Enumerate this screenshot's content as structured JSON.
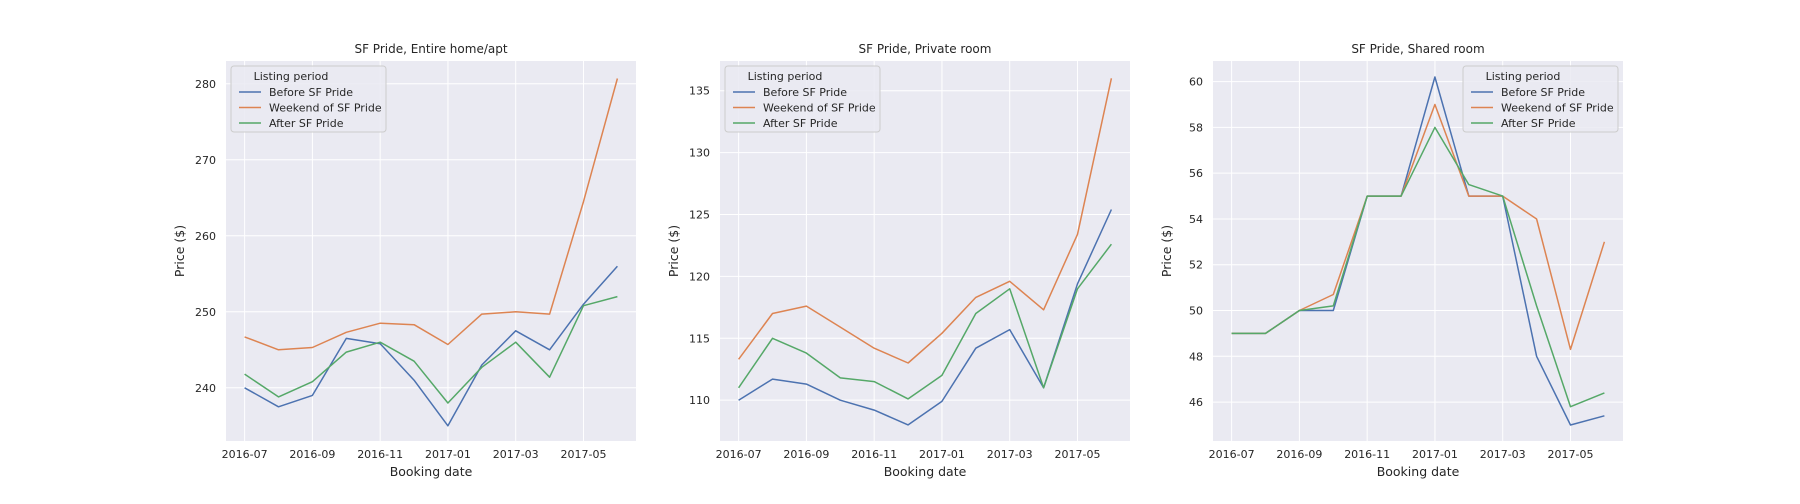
{
  "chart_data": [
    {
      "type": "line",
      "title": "SF Pride, Entire home/apt",
      "xlabel": "Booking date",
      "ylabel": "Price ($)",
      "x": [
        "2016-07",
        "2016-08",
        "2016-09",
        "2016-10",
        "2016-11",
        "2016-12",
        "2017-01",
        "2017-02",
        "2017-03",
        "2017-04",
        "2017-05",
        "2017-06"
      ],
      "xticks": [
        "2016-07",
        "2016-09",
        "2016-11",
        "2017-01",
        "2017-03",
        "2017-05"
      ],
      "ylim": [
        233,
        283
      ],
      "yticks": [
        240,
        250,
        260,
        270,
        280
      ],
      "grid": true,
      "legend": {
        "title": "Listing period",
        "placement": "top-left"
      },
      "series": [
        {
          "name": "Before SF Pride",
          "color": "#4c72b0",
          "values": [
            240,
            237.5,
            239,
            246.5,
            245.8,
            241,
            235,
            243,
            247.5,
            245,
            251,
            256
          ]
        },
        {
          "name": "Weekend of SF Pride",
          "color": "#dd8452",
          "values": [
            246.7,
            245,
            245.3,
            247.3,
            248.5,
            248.3,
            245.7,
            249.7,
            250,
            249.7,
            264.5,
            280.7
          ]
        },
        {
          "name": "After SF Pride",
          "color": "#55a868",
          "values": [
            241.8,
            238.8,
            240.8,
            244.7,
            246,
            243.5,
            238,
            242.7,
            246,
            241.4,
            250.8,
            252
          ]
        }
      ]
    },
    {
      "type": "line",
      "title": "SF Pride, Private room",
      "xlabel": "Booking date",
      "ylabel": "Price ($)",
      "x": [
        "2016-07",
        "2016-08",
        "2016-09",
        "2016-10",
        "2016-11",
        "2016-12",
        "2017-01",
        "2017-02",
        "2017-03",
        "2017-04",
        "2017-05",
        "2017-06"
      ],
      "xticks": [
        "2016-07",
        "2016-09",
        "2016-11",
        "2017-01",
        "2017-03",
        "2017-05"
      ],
      "ylim": [
        106.7,
        137.4
      ],
      "yticks": [
        110,
        115,
        120,
        125,
        130,
        135
      ],
      "grid": true,
      "legend": {
        "title": "Listing period",
        "placement": "top-left"
      },
      "series": [
        {
          "name": "Before SF Pride",
          "color": "#4c72b0",
          "values": [
            110,
            111.7,
            111.3,
            110,
            109.2,
            108,
            109.9,
            114.2,
            115.7,
            111,
            119.4,
            125.4
          ]
        },
        {
          "name": "Weekend of SF Pride",
          "color": "#dd8452",
          "values": [
            113.3,
            117,
            117.6,
            115.9,
            114.2,
            113,
            115.4,
            118.3,
            119.6,
            117.3,
            123.4,
            136
          ]
        },
        {
          "name": "After SF Pride",
          "color": "#55a868",
          "values": [
            111,
            115,
            113.8,
            111.8,
            111.5,
            110.1,
            112,
            117,
            119,
            111,
            119,
            122.6
          ]
        }
      ]
    },
    {
      "type": "line",
      "title": "SF Pride, Shared room",
      "xlabel": "Booking date",
      "ylabel": "Price ($)",
      "x": [
        "2016-07",
        "2016-08",
        "2016-09",
        "2016-10",
        "2016-11",
        "2016-12",
        "2017-01",
        "2017-02",
        "2017-03",
        "2017-04",
        "2017-05",
        "2017-06"
      ],
      "xticks": [
        "2016-07",
        "2016-09",
        "2016-11",
        "2017-01",
        "2017-03",
        "2017-05"
      ],
      "ylim": [
        44.3,
        60.9
      ],
      "yticks": [
        46,
        48,
        50,
        52,
        54,
        56,
        58,
        60
      ],
      "grid": true,
      "legend": {
        "title": "Listing period",
        "placement": "top-right"
      },
      "series": [
        {
          "name": "Before SF Pride",
          "color": "#4c72b0",
          "values": [
            49,
            49,
            50,
            50,
            55,
            55,
            60.2,
            55,
            55,
            48,
            45,
            45.4
          ]
        },
        {
          "name": "Weekend of SF Pride",
          "color": "#dd8452",
          "values": [
            49,
            49,
            50,
            50.7,
            55,
            55,
            59,
            55,
            55,
            54,
            48.3,
            53
          ]
        },
        {
          "name": "After SF Pride",
          "color": "#55a868",
          "values": [
            49,
            49,
            50,
            50.2,
            55,
            55,
            58,
            55.5,
            55,
            50.2,
            45.8,
            46.4
          ]
        }
      ]
    }
  ]
}
